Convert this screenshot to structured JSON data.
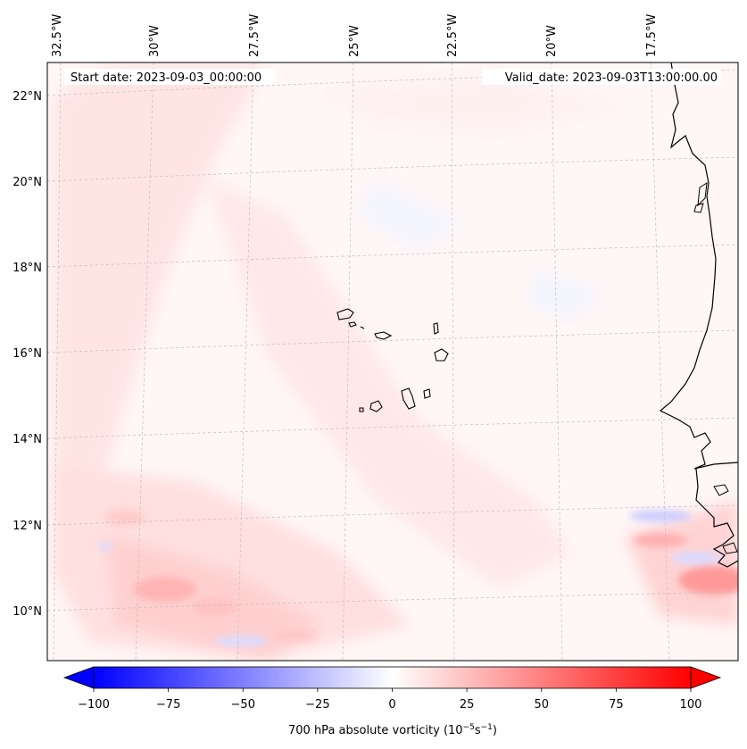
{
  "map": {
    "start_date_label": "Start date: 2023-09-03_00:00:00",
    "valid_date_label": "Valid_date: 2023-09-03T13:00:00.00",
    "longitude_labels": [
      "32.5°W",
      "30°W",
      "27.5°W",
      "25°W",
      "22.5°W",
      "20°W",
      "17.5°W"
    ],
    "latitude_labels": [
      "22°N",
      "20°N",
      "18°N",
      "16°N",
      "14°N",
      "12°N",
      "10°N"
    ],
    "field_name": "700 hPa absolute vorticity"
  },
  "colorbar": {
    "label_prefix": "700 hPa absolute vorticity (10",
    "label_exp1": "−5",
    "label_mid": "s",
    "label_exp2": "−1",
    "label_suffix": ")",
    "ticks": [
      "−100",
      "−75",
      "−50",
      "−25",
      "0",
      "25",
      "50",
      "75",
      "100"
    ],
    "min": -100,
    "max": 100,
    "colors": {
      "negative": "#0000ff",
      "zero": "#ffffff",
      "positive": "#ff0000"
    }
  },
  "colors": {
    "coastline": "#000000",
    "gridline": "#bdbdbd",
    "background_tint": "#fff6f6"
  }
}
